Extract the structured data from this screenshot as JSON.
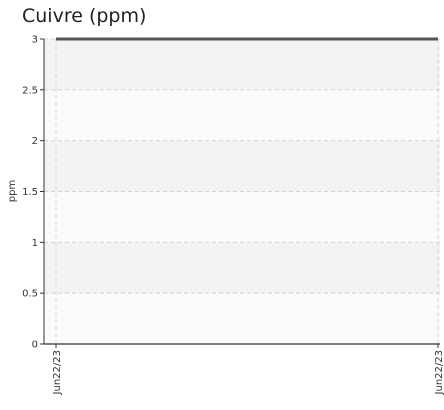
{
  "chart_data": {
    "type": "line",
    "title": "Cuivre (ppm)",
    "ylabel": "ppm",
    "xlabel": "",
    "ylim": [
      0,
      3
    ],
    "yticks": [
      "0",
      "0.5",
      "1",
      "1.5",
      "2",
      "2.5",
      "3"
    ],
    "xticks": [
      "Jun22/23",
      "Jun22/23"
    ],
    "grid": true,
    "series": [
      {
        "x": [
          "Jun22/23",
          "Jun22/23"
        ],
        "values": [
          3,
          3
        ],
        "color": "#555555"
      }
    ]
  }
}
